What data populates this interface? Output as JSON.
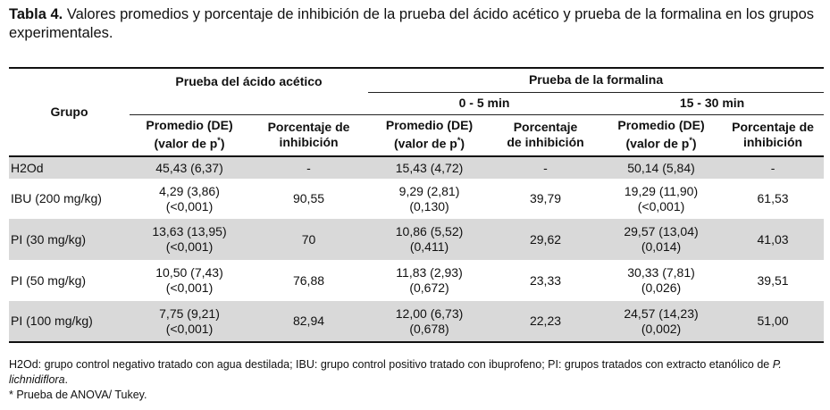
{
  "caption": {
    "label": "Tabla 4.",
    "text": "Valores promedios y porcentaje de inhibición de la prueba del ácido acético y prueba de la formalina en los grupos experimentales."
  },
  "header": {
    "grupo": "Grupo",
    "acetico": "Prueba del ácido acético",
    "formalina": "Prueba de la formalina",
    "interval_1": "0 - 5 min",
    "interval_2": "15 - 30 min",
    "promedio_l1": "Promedio (DE)",
    "promedio_l2": "(valor de p",
    "promedio_sup": "*",
    "promedio_close": ")",
    "porc_a_l1": "Porcentaje de",
    "porc_a_l2": "inhibición",
    "porc_b_l1": "Porcentaje",
    "porc_b_l2": "de inhibición",
    "porc_c_l1": "Porcentaje de",
    "porc_c_l2": "inhibición"
  },
  "rows": [
    {
      "grupo": "H2Od",
      "a_prom": "45,43 (6,37)",
      "a_p": "",
      "a_pct": "-",
      "f1_prom": "15,43 (4,72)",
      "f1_p": "",
      "f1_pct": "-",
      "f2_prom": "50,14 (5,84)",
      "f2_p": "",
      "f2_pct": "-"
    },
    {
      "grupo": "IBU (200 mg/kg)",
      "a_prom": "4,29  (3,86)",
      "a_p": "(<0,001)",
      "a_pct": "90,55",
      "f1_prom": "9,29 (2,81)",
      "f1_p": "(0,130)",
      "f1_pct": "39,79",
      "f2_prom": "19,29 (11,90)",
      "f2_p": "(<0,001)",
      "f2_pct": "61,53"
    },
    {
      "grupo": "PI (30 mg/kg)",
      "a_prom": "13,63 (13,95)",
      "a_p": "(<0,001)",
      "a_pct": "70",
      "f1_prom": "10,86 (5,52)",
      "f1_p": "(0,411)",
      "f1_pct": "29,62",
      "f2_prom": "29,57 (13,04)",
      "f2_p": "(0,014)",
      "f2_pct": "41,03"
    },
    {
      "grupo": "PI (50 mg/kg)",
      "a_prom": "10,50 (7,43)",
      "a_p": "(<0,001)",
      "a_pct": "76,88",
      "f1_prom": "11,83 (2,93)",
      "f1_p": "(0,672)",
      "f1_pct": "23,33",
      "f2_prom": "30,33 (7,81)",
      "f2_p": "(0,026)",
      "f2_pct": "39,51"
    },
    {
      "grupo": "PI (100 mg/kg)",
      "a_prom": "7,75 (9,21)",
      "a_p": "(<0,001)",
      "a_pct": "82,94",
      "f1_prom": "12,00 (6,73)",
      "f1_p": "(0,678)",
      "f1_pct": "22,23",
      "f2_prom": "24,57 (14,23)",
      "f2_p": "(0,002)",
      "f2_pct": "51,00"
    }
  ],
  "notes": {
    "line1": "H2Od: grupo control negativo tratado con agua destilada; IBU: grupo control positivo tratado con ibuprofeno; PI: grupos tratados con extracto etanólico de ",
    "species": "P. lichnidiflora",
    "line1_end": ".",
    "line2": "* Prueba de ANOVA/ Tukey."
  }
}
